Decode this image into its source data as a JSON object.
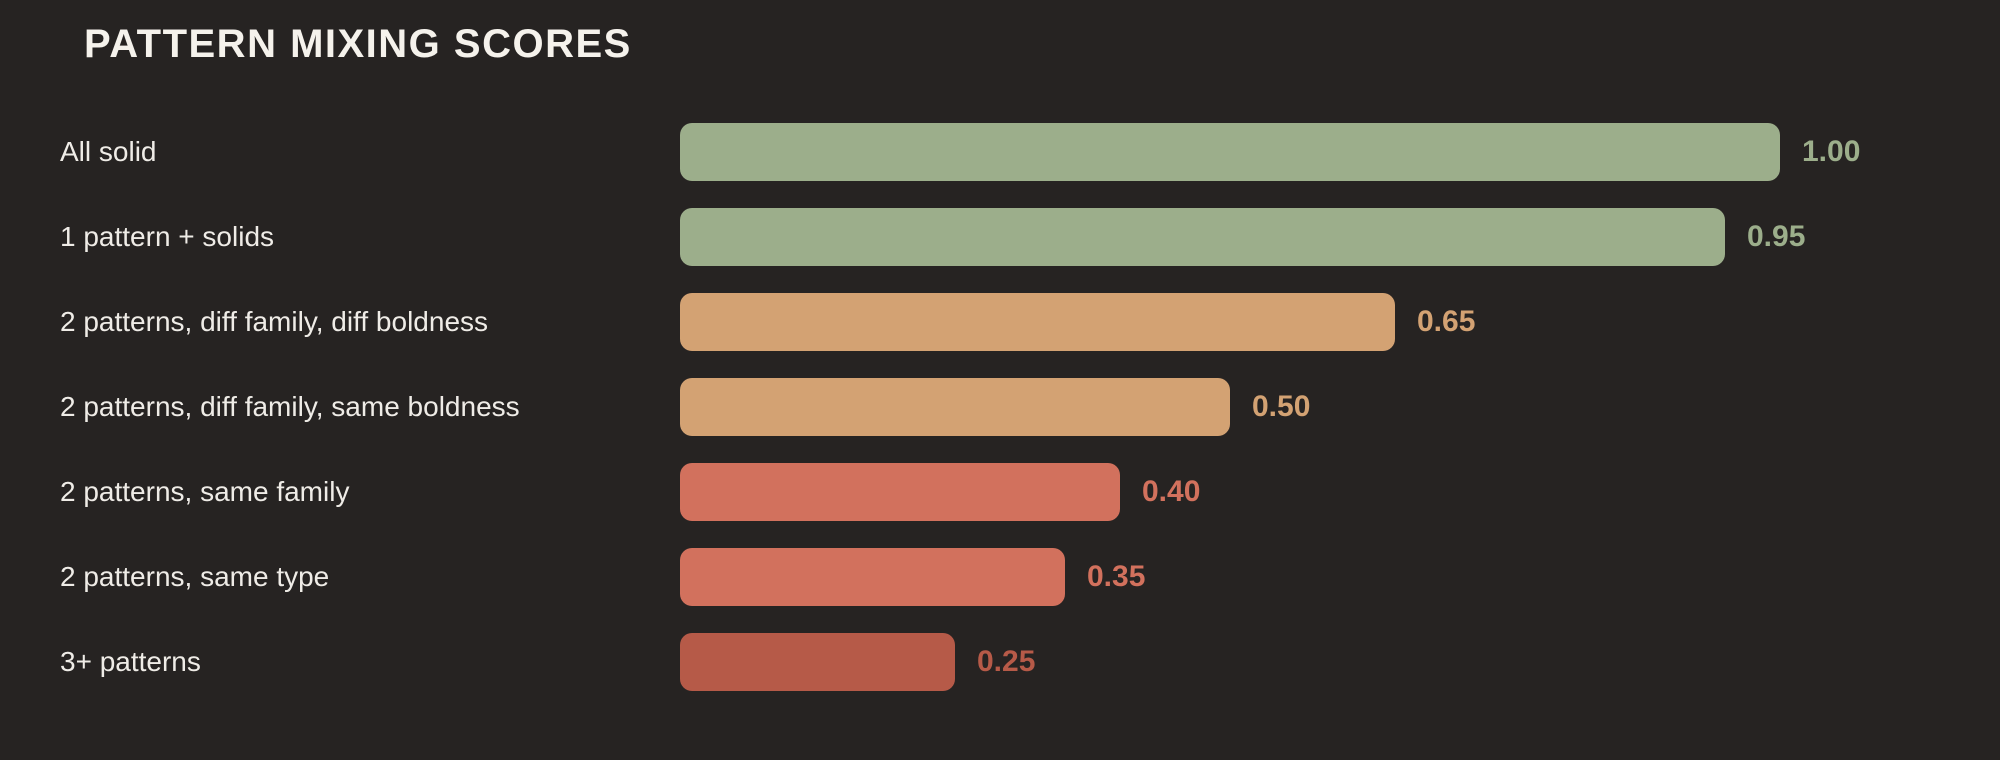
{
  "chart_data": {
    "type": "bar",
    "orientation": "horizontal",
    "title": "PATTERN MIXING SCORES",
    "categories": [
      "All solid",
      "1 pattern + solids",
      "2 patterns, diff family, diff boldness",
      "2 patterns, diff family, same boldness",
      "2 patterns, same family",
      "2 patterns, same type",
      "3+ patterns"
    ],
    "values": [
      1.0,
      0.95,
      0.65,
      0.5,
      0.4,
      0.35,
      0.25
    ],
    "value_labels": [
      "1.00",
      "0.95",
      "0.65",
      "0.50",
      "0.40",
      "0.35",
      "0.25"
    ],
    "bar_colors": [
      "#9CAE8B",
      "#9CAE8B",
      "#D3A273",
      "#D3A273",
      "#D2715D",
      "#D2715D",
      "#B65A48"
    ],
    "xlim": [
      0,
      1
    ],
    "grid": false,
    "legend": "none",
    "background_color": "#262322",
    "title_color": "#F5F2EC",
    "label_color": "#EFECE7"
  }
}
